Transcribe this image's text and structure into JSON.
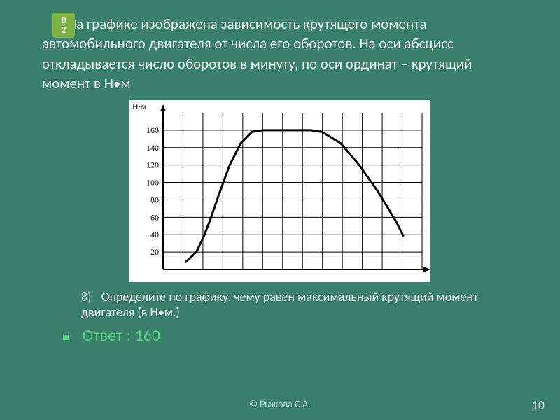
{
  "badge": {
    "line1": "В",
    "line2": "2"
  },
  "problem": "На графике изображена зависимость крутящего момента автомобильного двигателя от числа его оборотов. На оси абсцисс откладывается число оборотов в минуту, по  оси ординат – крутящий момент в Н•м",
  "question_number": "8)",
  "question": "Определите по графику, чему равен максимальный крутящий момент двигателя (в Н•м.)",
  "answer_label": "Ответ :",
  "answer_value": "160",
  "copyright": "© Рыжова С.А.",
  "page": "10",
  "chart": {
    "type": "line",
    "y_axis_title": "Н·м",
    "background_color": "#ffffff",
    "curve_color": "#000000",
    "grid_color": "#000000",
    "axis_color": "#000000",
    "xlim": [
      0,
      7000
    ],
    "ylim": [
      0,
      180
    ],
    "yticks": [
      20,
      40,
      60,
      80,
      100,
      120,
      140,
      160
    ],
    "x_grid_count": 13,
    "curve_width": 3,
    "points": [
      [
        600,
        8
      ],
      [
        900,
        20
      ],
      [
        1100,
        38
      ],
      [
        1300,
        60
      ],
      [
        1500,
        85
      ],
      [
        1800,
        120
      ],
      [
        2100,
        145
      ],
      [
        2400,
        158
      ],
      [
        2700,
        160
      ],
      [
        3000,
        160
      ],
      [
        3500,
        160
      ],
      [
        4000,
        160
      ],
      [
        4300,
        158
      ],
      [
        4800,
        145
      ],
      [
        5300,
        120
      ],
      [
        5800,
        90
      ],
      [
        6300,
        55
      ],
      [
        6500,
        38
      ]
    ]
  },
  "colors": {
    "slide_bg": "#3a7f6a",
    "text": "#e8f0ec",
    "accent": "#5fd08a",
    "badge_bg": "#7cb342",
    "muted": "#bcd6cc"
  }
}
